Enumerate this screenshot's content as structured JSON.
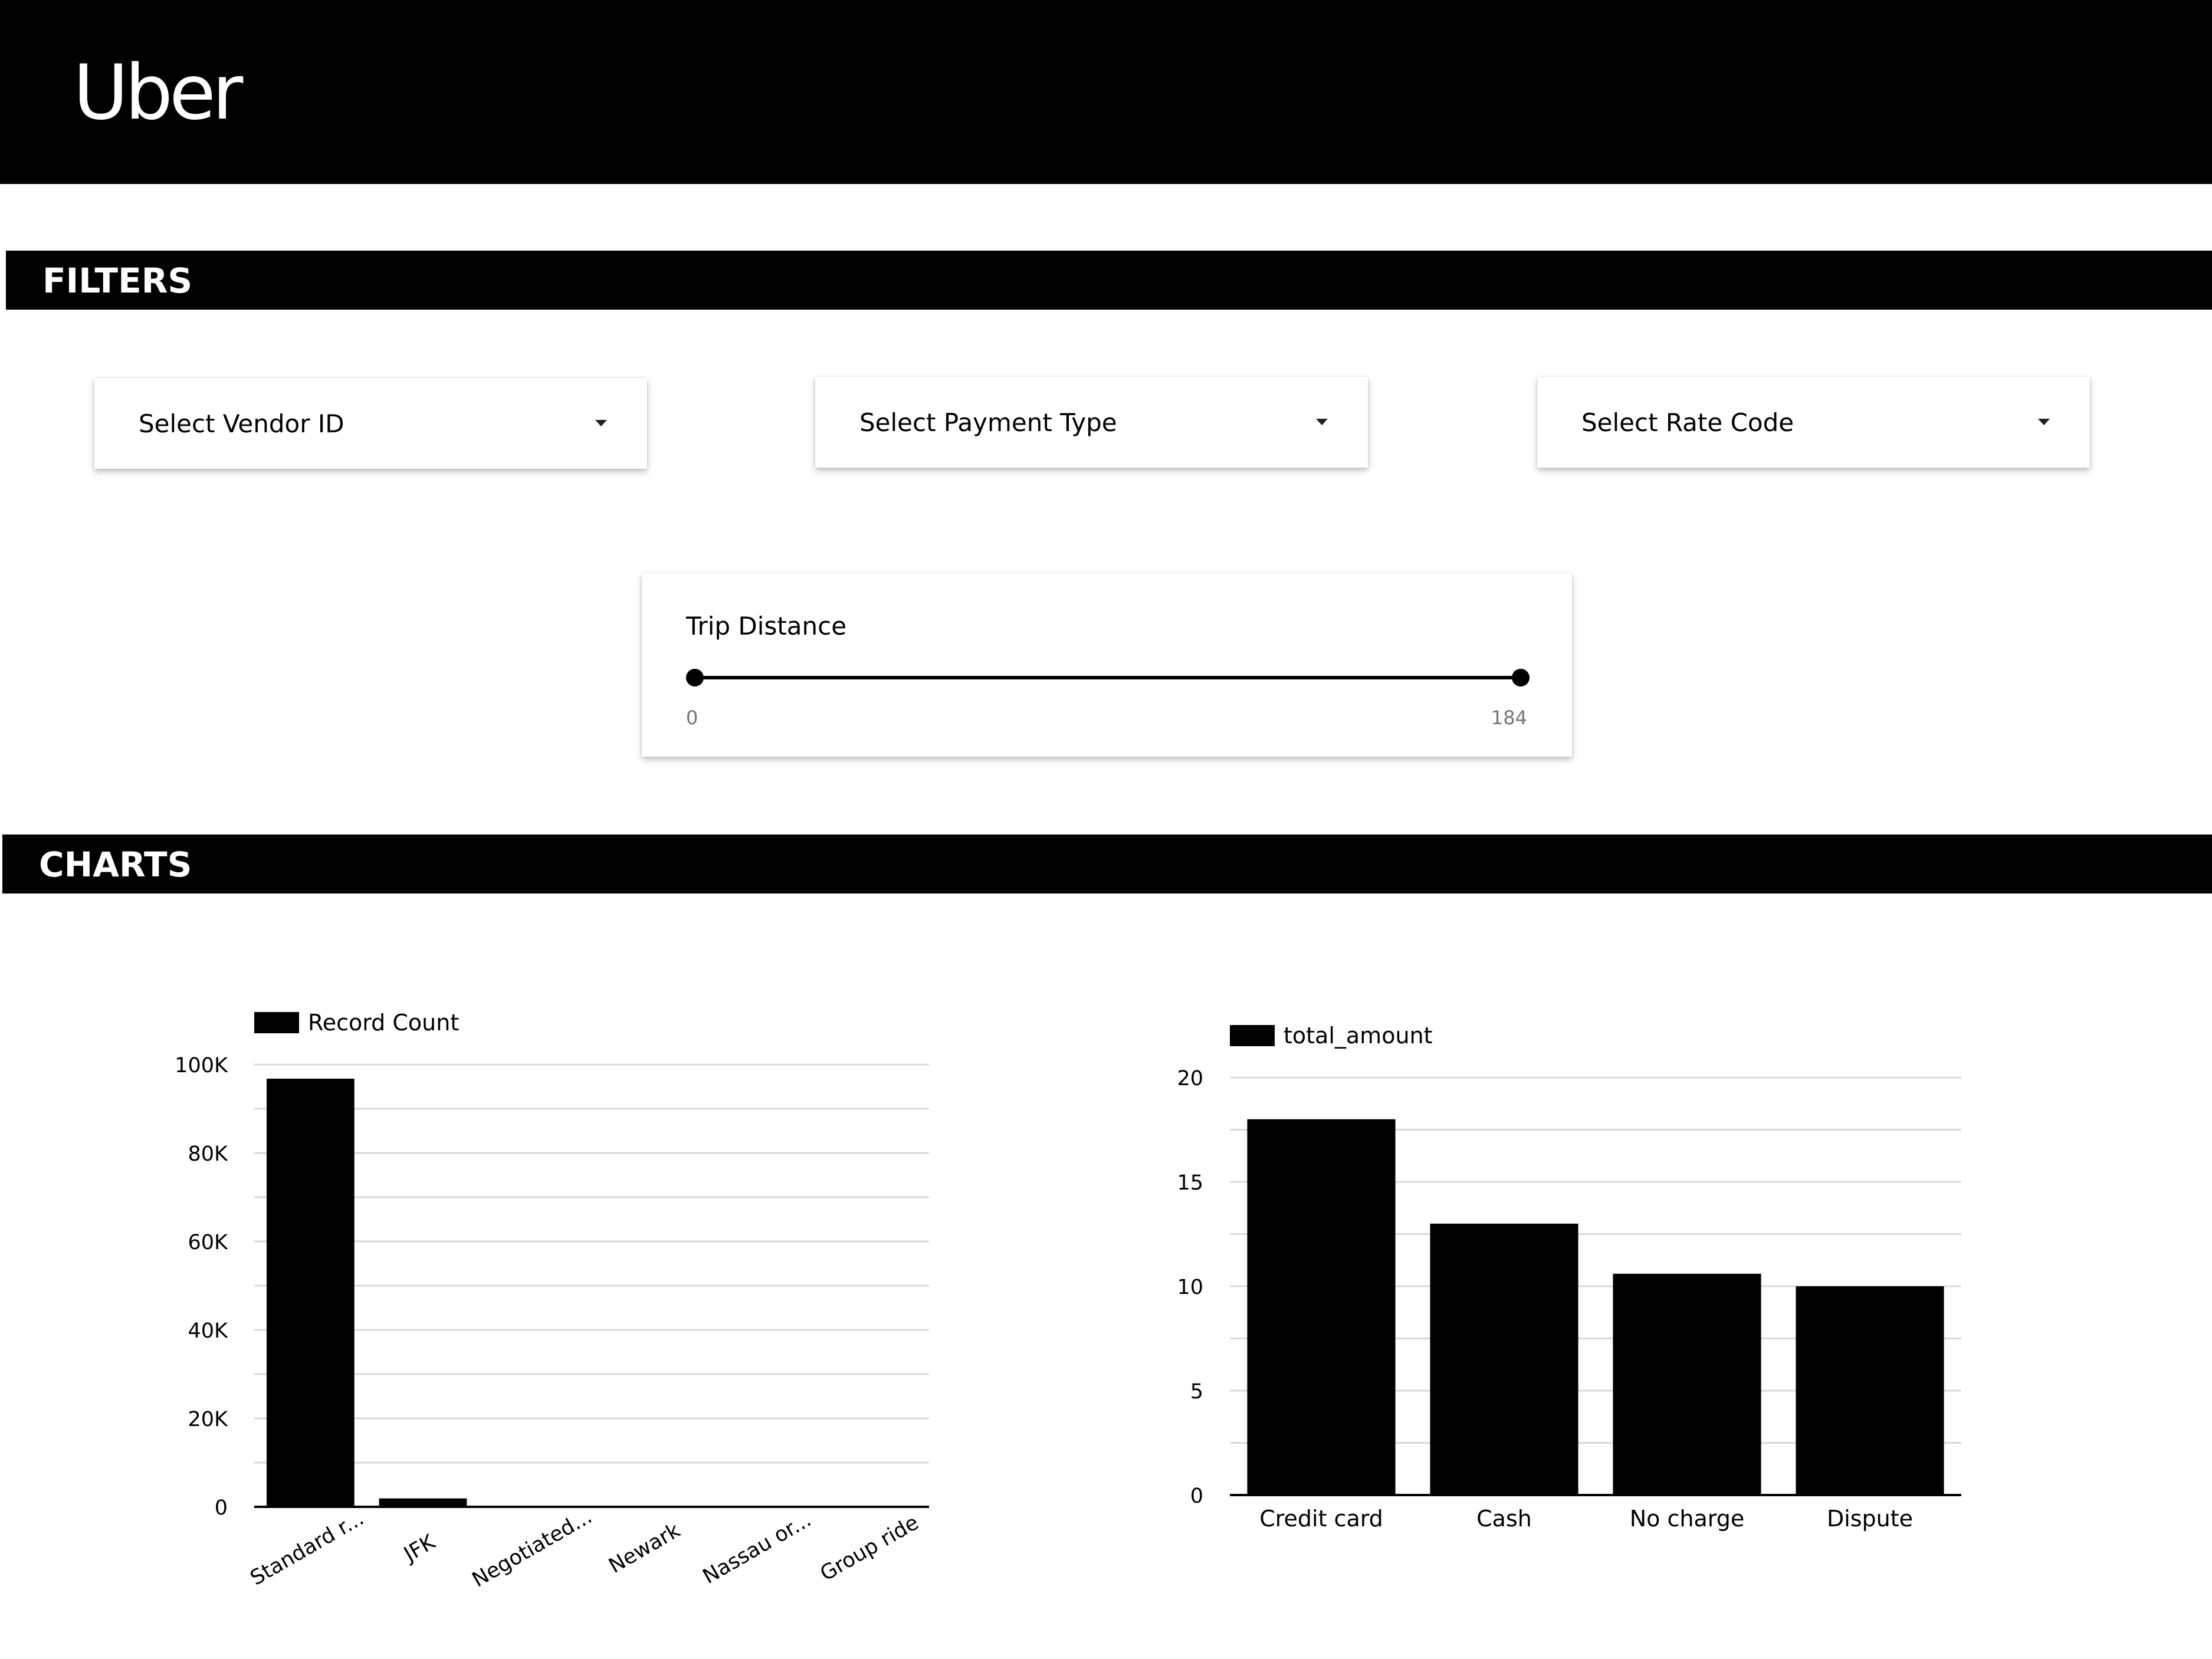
{
  "header": {
    "logo_text": "Uber"
  },
  "sections": {
    "filters_title": "FILTERS",
    "charts_title": "CHARTS"
  },
  "filters": {
    "vendor_label": "Select Vendor ID",
    "payment_label": "Select Payment Type",
    "rate_label": "Select Rate Code"
  },
  "trip_distance": {
    "label": "Trip Distance",
    "min": "0",
    "max": "184"
  },
  "colors": {
    "bar": "#000000",
    "gridline": "#d9d9d9",
    "header_background": "#000000"
  },
  "chart_data": [
    {
      "type": "bar",
      "categories": [
        "Standard r...",
        "JFK",
        "Negotiated...",
        "Newark",
        "Nassau or...",
        "Group ride"
      ],
      "series": [
        {
          "name": "Record Count",
          "values": [
            96800,
            1900,
            250,
            150,
            60,
            3
          ]
        }
      ],
      "ylim": [
        0,
        100000
      ],
      "yticks": [
        0,
        20000,
        40000,
        60000,
        80000,
        100000
      ],
      "ytick_labels": [
        "0",
        "20K",
        "40K",
        "60K",
        "80K",
        "100K"
      ],
      "legend": "top-left",
      "grid": true
    },
    {
      "type": "bar",
      "categories": [
        "Credit card",
        "Cash",
        "No charge",
        "Dispute"
      ],
      "series": [
        {
          "name": "total_amount",
          "values": [
            18,
            13,
            10.6,
            10
          ]
        }
      ],
      "ylim": [
        0,
        20
      ],
      "yticks": [
        0,
        5,
        10,
        15,
        20
      ],
      "ytick_labels": [
        "0",
        "5",
        "10",
        "15",
        "20"
      ],
      "legend": "top-left",
      "grid": true
    }
  ]
}
